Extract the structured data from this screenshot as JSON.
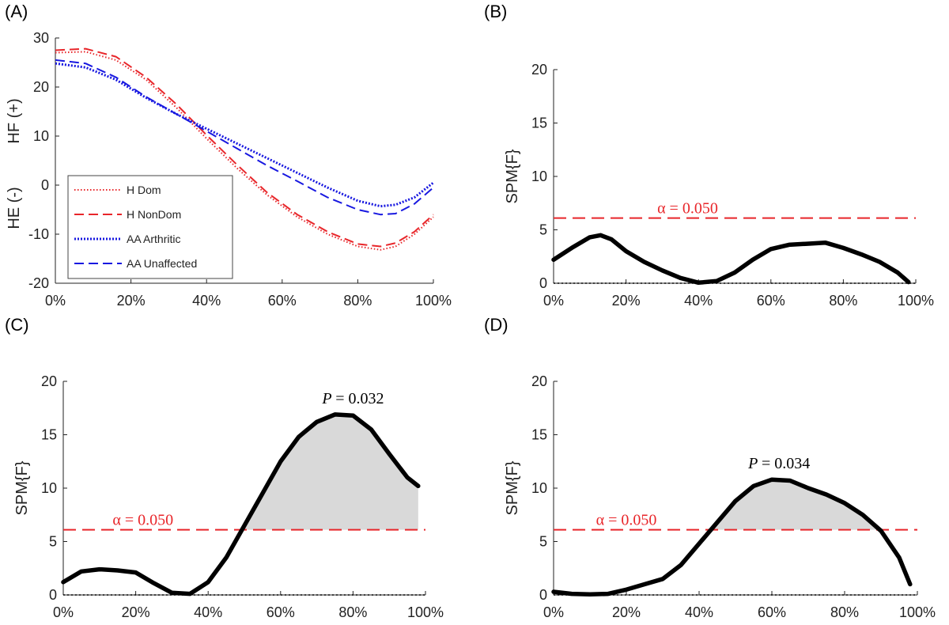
{
  "colors": {
    "red": "#e8262a",
    "blue": "#1818e0",
    "black": "#000000",
    "fill": "#d9d9d9",
    "axis": "#222222"
  },
  "chart_data": [
    {
      "id": "A",
      "panel_label": "(A)",
      "type": "line",
      "ylabel_top": "HF (+)",
      "ylabel_bottom": "HE (-)",
      "xlim": [
        0,
        100
      ],
      "ylim": [
        -20,
        30
      ],
      "yticks": [
        30,
        20,
        10,
        0,
        -10,
        -20
      ],
      "xticks": [
        "0%",
        "20%",
        "40%",
        "60%",
        "80%",
        "100%"
      ],
      "legend": {
        "position": "bottom-left"
      },
      "series": [
        {
          "name": "H Dom",
          "color": "#e8262a",
          "style": "dotted",
          "x": [
            0,
            8,
            16,
            24,
            32,
            40,
            48,
            56,
            64,
            72,
            80,
            86,
            90,
            95,
            100
          ],
          "y": [
            27.0,
            27.2,
            25.5,
            21.5,
            15.8,
            9.5,
            3.5,
            -2.0,
            -6.5,
            -10.0,
            -12.5,
            -13.2,
            -12.5,
            -10.0,
            -6.5
          ]
        },
        {
          "name": "H NonDom",
          "color": "#e8262a",
          "style": "dashed",
          "x": [
            0,
            8,
            16,
            24,
            32,
            40,
            48,
            56,
            64,
            72,
            80,
            86,
            90,
            95,
            100
          ],
          "y": [
            27.5,
            27.8,
            26.2,
            22.0,
            16.5,
            10.2,
            4.2,
            -1.5,
            -6.0,
            -9.5,
            -12.0,
            -12.5,
            -11.8,
            -9.5,
            -6.0
          ]
        },
        {
          "name": "AA Arthritic",
          "color": "#1818e0",
          "style": "dotted",
          "x": [
            0,
            8,
            16,
            24,
            32,
            40,
            48,
            56,
            64,
            72,
            80,
            86,
            90,
            95,
            100
          ],
          "y": [
            24.8,
            24.0,
            21.5,
            17.8,
            14.5,
            11.5,
            8.5,
            5.5,
            2.5,
            -0.5,
            -3.2,
            -4.3,
            -4.0,
            -2.5,
            0.5
          ]
        },
        {
          "name": "AA Unaffected",
          "color": "#1818e0",
          "style": "dashed",
          "x": [
            0,
            8,
            16,
            24,
            32,
            40,
            48,
            56,
            64,
            72,
            80,
            86,
            90,
            95,
            100
          ],
          "y": [
            25.5,
            24.8,
            22.0,
            18.0,
            14.5,
            11.0,
            7.5,
            4.0,
            0.8,
            -2.5,
            -5.0,
            -6.0,
            -5.8,
            -3.8,
            -0.5
          ]
        }
      ]
    },
    {
      "id": "B",
      "panel_label": "(B)",
      "type": "line",
      "ylabel": "SPM{F}",
      "xlim": [
        0,
        100
      ],
      "ylim": [
        0,
        20
      ],
      "yticks": [
        20,
        15,
        10,
        5,
        0
      ],
      "xticks": [
        "0%",
        "20%",
        "40%",
        "60%",
        "80%",
        "100%"
      ],
      "threshold": 6.1,
      "alpha_label": "α = 0.050",
      "pvalue_label": "",
      "series": [
        {
          "name": "",
          "color": "#000000",
          "x": [
            0,
            5,
            10,
            13,
            16,
            20,
            25,
            30,
            35,
            40,
            45,
            50,
            55,
            60,
            65,
            70,
            75,
            80,
            85,
            90,
            95,
            98
          ],
          "y": [
            2.2,
            3.3,
            4.3,
            4.5,
            4.1,
            3.0,
            2.0,
            1.2,
            0.5,
            0.05,
            0.2,
            1.0,
            2.2,
            3.2,
            3.6,
            3.7,
            3.8,
            3.3,
            2.7,
            2.0,
            1.0,
            0.1
          ]
        }
      ]
    },
    {
      "id": "C",
      "panel_label": "(C)",
      "type": "line",
      "ylabel": "SPM{F}",
      "xlim": [
        0,
        100
      ],
      "ylim": [
        0,
        20
      ],
      "yticks": [
        20,
        15,
        10,
        5,
        0
      ],
      "xticks": [
        "0%",
        "20%",
        "40%",
        "60%",
        "80%",
        "100%"
      ],
      "threshold": 6.1,
      "alpha_label": "α = 0.050",
      "pvalue_label": "= 0.032",
      "pvalue_x": 80,
      "series": [
        {
          "name": "",
          "color": "#000000",
          "x": [
            0,
            5,
            10,
            15,
            20,
            25,
            30,
            35,
            40,
            45,
            50,
            55,
            60,
            65,
            70,
            75,
            80,
            85,
            90,
            95,
            98
          ],
          "y": [
            1.2,
            2.2,
            2.4,
            2.3,
            2.1,
            1.1,
            0.2,
            0.1,
            1.2,
            3.5,
            6.5,
            9.5,
            12.5,
            14.8,
            16.2,
            16.9,
            16.8,
            15.5,
            13.2,
            11.0,
            10.2
          ]
        }
      ]
    },
    {
      "id": "D",
      "panel_label": "(D)",
      "type": "line",
      "ylabel": "SPM{F}",
      "xlim": [
        0,
        100
      ],
      "ylim": [
        0,
        20
      ],
      "yticks": [
        20,
        15,
        10,
        5,
        0
      ],
      "xticks": [
        "0%",
        "20%",
        "40%",
        "60%",
        "80%",
        "100%"
      ],
      "threshold": 6.1,
      "alpha_label": "α = 0.050",
      "pvalue_label": "= 0.034",
      "pvalue_x": 62,
      "series": [
        {
          "name": "",
          "color": "#000000",
          "x": [
            0,
            5,
            10,
            15,
            20,
            25,
            30,
            35,
            40,
            45,
            50,
            55,
            60,
            65,
            70,
            75,
            80,
            85,
            90,
            95,
            98
          ],
          "y": [
            0.3,
            0.1,
            0.05,
            0.1,
            0.5,
            1.0,
            1.5,
            2.8,
            4.8,
            6.8,
            8.8,
            10.2,
            10.8,
            10.7,
            10.0,
            9.4,
            8.6,
            7.5,
            6.0,
            3.5,
            1.0
          ]
        }
      ]
    }
  ]
}
